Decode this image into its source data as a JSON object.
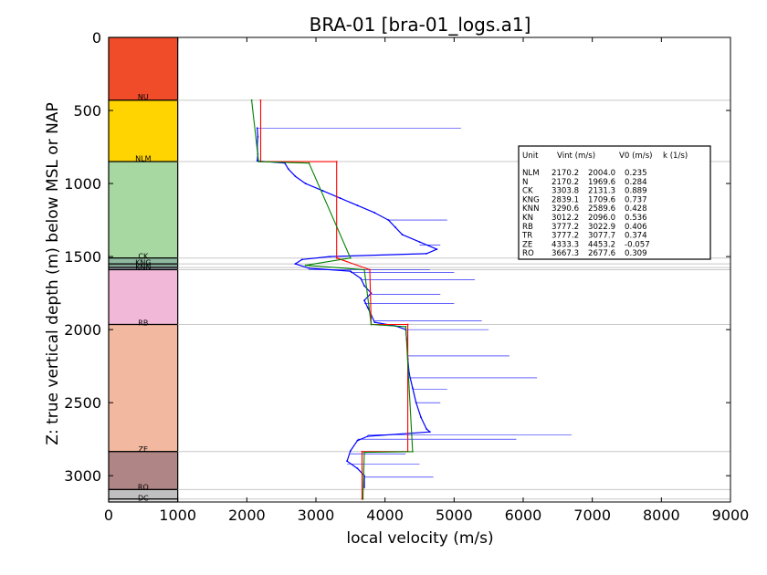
{
  "chart_data": {
    "type": "line",
    "title": "BRA-01 [bra-01_logs.a1]",
    "xlabel": "local velocity (m/s)",
    "ylabel": "Z: true vertical depth (m) below MSL or NAP",
    "xlim": [
      0,
      9000
    ],
    "ylim": [
      3180,
      0
    ],
    "x_ticks": [
      "0",
      "1000",
      "2000",
      "3000",
      "4000",
      "5000",
      "6000",
      "7000",
      "8000",
      "9000"
    ],
    "y_ticks": [
      "0",
      "500",
      "1000",
      "1500",
      "2000",
      "2500",
      "3000"
    ],
    "grid": false,
    "stratigraphy": {
      "x_range": [
        0,
        1000
      ],
      "units": [
        {
          "name": "",
          "top": 0,
          "base": 430,
          "color": "#f04c2a"
        },
        {
          "name": "NU",
          "top": 430,
          "base": 850,
          "color": "#ffd400"
        },
        {
          "name": "NLM",
          "top": 850,
          "base": 1510,
          "color": "#a8d8a2"
        },
        {
          "name": "CK",
          "top": 1510,
          "base": 1550,
          "color": "#8fb8a0"
        },
        {
          "name": "KNG",
          "top": 1550,
          "base": 1575,
          "color": "#7f9f8f"
        },
        {
          "name": "KNN",
          "top": 1575,
          "base": 1590,
          "color": "#a3a0b8"
        },
        {
          "name": "",
          "top": 1590,
          "base": 1965,
          "color": "#f2b8d8"
        },
        {
          "name": "RB",
          "top": 1965,
          "base": 2835,
          "color": "#f2b8a0"
        },
        {
          "name": "ZE",
          "top": 2835,
          "base": 3095,
          "color": "#b08585"
        },
        {
          "name": "RO",
          "top": 3095,
          "base": 3160,
          "color": "#c0c0c0"
        },
        {
          "name": "DC",
          "top": 3160,
          "base": 3180,
          "color": "#e0e0e0"
        }
      ],
      "label_depths": [
        {
          "name": "NU",
          "depth": 400
        },
        {
          "name": "NLM",
          "depth": 820
        },
        {
          "name": "CK",
          "depth": 1490
        },
        {
          "name": "KNG",
          "depth": 1535
        },
        {
          "name": "KNN",
          "depth": 1565
        },
        {
          "name": "RB",
          "depth": 1945
        },
        {
          "name": "ZE",
          "depth": 2810
        },
        {
          "name": "RO",
          "depth": 3070
        },
        {
          "name": "DC",
          "depth": 3145
        }
      ]
    },
    "boundaries": [
      430,
      850,
      1510,
      1550,
      1575,
      1590,
      1965,
      2835,
      3095,
      3160
    ],
    "series": [
      {
        "style": "log",
        "color": "#0000ff",
        "points": [
          [
            2150,
            620
          ],
          [
            2160,
            680
          ],
          [
            2150,
            740
          ],
          [
            2160,
            800
          ],
          [
            2150,
            845
          ],
          [
            2550,
            860
          ],
          [
            2600,
            900
          ],
          [
            2700,
            950
          ],
          [
            2850,
            1000
          ],
          [
            3100,
            1050
          ],
          [
            3350,
            1100
          ],
          [
            3600,
            1150
          ],
          [
            3850,
            1200
          ],
          [
            4050,
            1250
          ],
          [
            4150,
            1300
          ],
          [
            4250,
            1350
          ],
          [
            4500,
            1400
          ],
          [
            4750,
            1450
          ],
          [
            4600,
            1480
          ],
          [
            3200,
            1500
          ],
          [
            2800,
            1520
          ],
          [
            2700,
            1550
          ],
          [
            2900,
            1580
          ],
          [
            3500,
            1600
          ],
          [
            3650,
            1650
          ],
          [
            3700,
            1700
          ],
          [
            3800,
            1750
          ],
          [
            3700,
            1800
          ],
          [
            3750,
            1850
          ],
          [
            3800,
            1900
          ],
          [
            3850,
            1950
          ],
          [
            4150,
            1975
          ],
          [
            4300,
            2000
          ],
          [
            4320,
            2100
          ],
          [
            4330,
            2200
          ],
          [
            4350,
            2300
          ],
          [
            4400,
            2400
          ],
          [
            4450,
            2500
          ],
          [
            4520,
            2600
          ],
          [
            4600,
            2680
          ],
          [
            4650,
            2700
          ],
          [
            3750,
            2730
          ],
          [
            3600,
            2760
          ],
          [
            3500,
            2830
          ],
          [
            3450,
            2900
          ],
          [
            3600,
            2950
          ],
          [
            3700,
            3000
          ],
          [
            3700,
            3080
          ]
        ],
        "spikes": [
          [
            5100,
            620
          ],
          [
            4900,
            1250
          ],
          [
            4800,
            1420
          ],
          [
            4650,
            1590
          ],
          [
            5000,
            1610
          ],
          [
            5300,
            1660
          ],
          [
            4800,
            1760
          ],
          [
            5000,
            1820
          ],
          [
            5400,
            1940
          ],
          [
            5500,
            2000
          ],
          [
            5800,
            2180
          ],
          [
            6200,
            2330
          ],
          [
            4900,
            2410
          ],
          [
            4800,
            2500
          ],
          [
            6700,
            2720
          ],
          [
            5900,
            2750
          ],
          [
            4300,
            2850
          ],
          [
            4500,
            2920
          ],
          [
            4700,
            3010
          ]
        ]
      },
      {
        "style": "interval velocity",
        "color": "#ff0000",
        "points": [
          [
            2200,
            430
          ],
          [
            2200,
            850
          ],
          [
            3300,
            850
          ],
          [
            3300,
            1510
          ],
          [
            3780,
            1590
          ],
          [
            3800,
            1965
          ],
          [
            4330,
            1965
          ],
          [
            4330,
            2835
          ],
          [
            3667,
            2835
          ],
          [
            3667,
            3160
          ]
        ]
      },
      {
        "style": "linear velocity V0 + k*z",
        "color": "#008000",
        "points": [
          [
            2070,
            430
          ],
          [
            2170,
            850
          ],
          [
            2900,
            860
          ],
          [
            3500,
            1510
          ],
          [
            2850,
            1560
          ],
          [
            3700,
            1590
          ],
          [
            3800,
            1965
          ],
          [
            4300,
            1980
          ],
          [
            4400,
            2835
          ],
          [
            3700,
            2840
          ],
          [
            3680,
            3160
          ]
        ]
      }
    ]
  },
  "legend_box": {
    "header": [
      "Unit",
      "Vint (m/s)",
      "V0 (m/s)",
      "k (1/s)"
    ],
    "rows": [
      [
        "NLM",
        "2170.2",
        "2004.0",
        "0.235"
      ],
      [
        "N",
        "2170.2",
        "1969.6",
        "0.284"
      ],
      [
        "CK",
        "3303.8",
        "2131.3",
        "0.889"
      ],
      [
        "KNG",
        "2839.1",
        "1709.6",
        "0.737"
      ],
      [
        "KNN",
        "3290.6",
        "2589.6",
        "0.428"
      ],
      [
        "KN",
        "3012.2",
        "2096.0",
        "0.536"
      ],
      [
        "RB",
        "3777.2",
        "3022.9",
        "0.406"
      ],
      [
        "TR",
        "3777.2",
        "3077.7",
        "0.374"
      ],
      [
        "ZE",
        "4333.3",
        "4453.2",
        "-0.057"
      ],
      [
        "RO",
        "3667.3",
        "2677.6",
        "0.309"
      ]
    ]
  }
}
